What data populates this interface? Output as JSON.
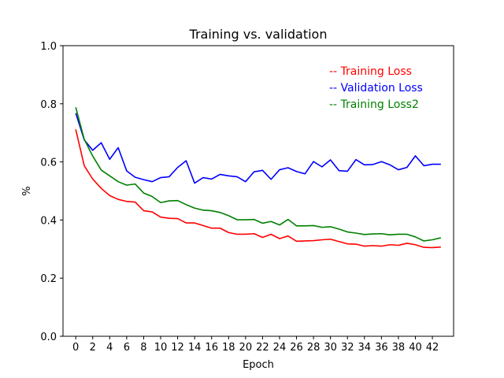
{
  "chart_data": {
    "type": "line",
    "title": "Training vs. validation",
    "xlabel": "Epoch",
    "ylabel": "%",
    "xlim": [
      -1.5,
      44.5
    ],
    "ylim": [
      0.0,
      1.0
    ],
    "xticks": [
      0,
      2,
      4,
      6,
      8,
      10,
      12,
      14,
      16,
      18,
      20,
      22,
      24,
      26,
      28,
      30,
      32,
      34,
      36,
      38,
      40,
      42
    ],
    "yticks": [
      0.0,
      0.2,
      0.4,
      0.6,
      0.8,
      1.0
    ],
    "ytick_labels": [
      "0.0",
      "0.2",
      "0.4",
      "0.6",
      "0.8",
      "1.0"
    ],
    "grid": false,
    "legend_position": "top-right",
    "x": [
      0,
      1,
      2,
      3,
      4,
      5,
      6,
      7,
      8,
      9,
      10,
      11,
      12,
      13,
      14,
      15,
      16,
      17,
      18,
      19,
      20,
      21,
      22,
      23,
      24,
      25,
      26,
      27,
      28,
      29,
      30,
      31,
      32,
      33,
      34,
      35,
      36,
      37,
      38,
      39,
      40,
      41,
      42,
      43
    ],
    "series": [
      {
        "name": "-- Training Loss",
        "color": "#ff0000",
        "values": [
          0.712,
          0.587,
          0.541,
          0.509,
          0.484,
          0.471,
          0.464,
          0.462,
          0.432,
          0.428,
          0.41,
          0.406,
          0.405,
          0.39,
          0.39,
          0.381,
          0.372,
          0.372,
          0.357,
          0.351,
          0.351,
          0.353,
          0.34,
          0.351,
          0.336,
          0.345,
          0.327,
          0.328,
          0.329,
          0.332,
          0.334,
          0.326,
          0.318,
          0.317,
          0.31,
          0.312,
          0.31,
          0.315,
          0.313,
          0.32,
          0.315,
          0.306,
          0.305,
          0.307
        ]
      },
      {
        "name": "-- Validation Loss",
        "color": "#0000ff",
        "values": [
          0.768,
          0.676,
          0.64,
          0.666,
          0.609,
          0.649,
          0.569,
          0.547,
          0.539,
          0.532,
          0.546,
          0.549,
          0.581,
          0.604,
          0.527,
          0.546,
          0.541,
          0.557,
          0.552,
          0.549,
          0.532,
          0.566,
          0.571,
          0.54,
          0.573,
          0.58,
          0.567,
          0.559,
          0.601,
          0.583,
          0.607,
          0.57,
          0.568,
          0.608,
          0.59,
          0.591,
          0.601,
          0.59,
          0.573,
          0.581,
          0.621,
          0.587,
          0.592,
          0.592
        ]
      },
      {
        "name": "-- Training Loss2",
        "color": "#008000",
        "values": [
          0.788,
          0.678,
          0.62,
          0.572,
          0.552,
          0.532,
          0.52,
          0.524,
          0.493,
          0.481,
          0.46,
          0.466,
          0.467,
          0.453,
          0.441,
          0.434,
          0.432,
          0.426,
          0.415,
          0.401,
          0.401,
          0.402,
          0.389,
          0.395,
          0.383,
          0.402,
          0.38,
          0.38,
          0.381,
          0.375,
          0.377,
          0.369,
          0.359,
          0.355,
          0.35,
          0.352,
          0.353,
          0.349,
          0.351,
          0.351,
          0.342,
          0.328,
          0.332,
          0.339
        ]
      }
    ]
  }
}
